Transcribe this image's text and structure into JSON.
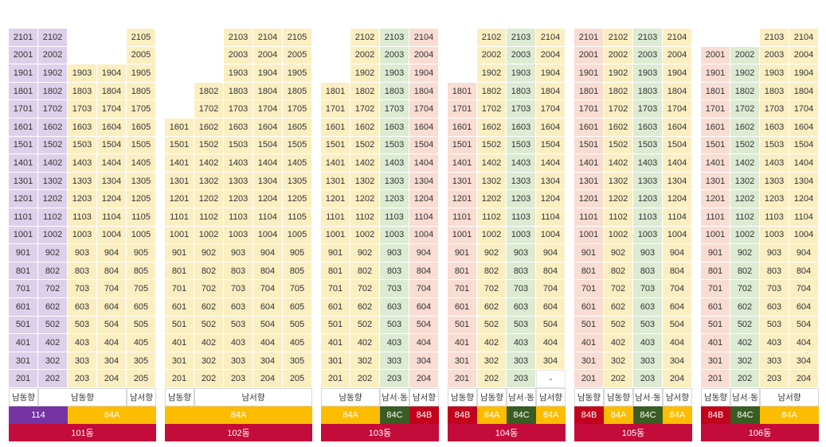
{
  "colors": {
    "purple_unit": "#ddd0ea",
    "yellow_unit": "#fbefc2",
    "green_unit": "#dcebd2",
    "pink_unit": "#f9dcd2",
    "type_114": "#7533a3",
    "type_84A": "#fcbd00",
    "type_84B": "#c2021d",
    "type_84C": "#395c22",
    "building_label": "#c30c3a"
  },
  "buildings": [
    {
      "name": "101동",
      "columns": [
        {
          "color": "purple",
          "top": 21,
          "suffix": "01",
          "bottom": 2
        },
        {
          "color": "purple",
          "top": 21,
          "suffix": "02",
          "bottom": 2
        },
        {
          "color": "yellow",
          "top": 19,
          "suffix": "03",
          "bottom": 2
        },
        {
          "color": "yellow",
          "top": 19,
          "suffix": "04",
          "bottom": 2
        },
        {
          "color": "yellow",
          "top": 21,
          "suffix": "05",
          "bottom": 2
        }
      ],
      "orientations": [
        {
          "label": "남동향",
          "span": 1
        },
        {
          "label": "남동향",
          "span": 3
        },
        {
          "label": "남서향",
          "span": 1
        }
      ],
      "types": [
        {
          "label": "114",
          "span": 2,
          "kind": "114"
        },
        {
          "label": "84A",
          "span": 3,
          "kind": "84A"
        }
      ]
    },
    {
      "name": "102동",
      "columns": [
        {
          "color": "yellow",
          "top": 16,
          "suffix": "01",
          "bottom": 2
        },
        {
          "color": "yellow",
          "top": 18,
          "suffix": "02",
          "bottom": 2
        },
        {
          "color": "yellow",
          "top": 21,
          "suffix": "03",
          "bottom": 2
        },
        {
          "color": "yellow",
          "top": 21,
          "suffix": "04",
          "bottom": 2
        },
        {
          "color": "yellow",
          "top": 21,
          "suffix": "05",
          "bottom": 2
        }
      ],
      "orientations": [
        {
          "label": "남동향",
          "span": 1
        },
        {
          "label": "남서향",
          "span": 4
        }
      ],
      "types": [
        {
          "label": "84A",
          "span": 5,
          "kind": "84A"
        }
      ]
    },
    {
      "name": "103동",
      "columns": [
        {
          "color": "yellow",
          "top": 18,
          "suffix": "01",
          "bottom": 2
        },
        {
          "color": "yellow",
          "top": 21,
          "suffix": "02",
          "bottom": 2
        },
        {
          "color": "green",
          "top": 21,
          "suffix": "03",
          "bottom": 2
        },
        {
          "color": "pink",
          "top": 21,
          "suffix": "04",
          "bottom": 2
        }
      ],
      "orientations": [
        {
          "label": "남동향",
          "span": 2
        },
        {
          "label": "남서·동",
          "span": 1
        },
        {
          "label": "남서향",
          "span": 1
        }
      ],
      "types": [
        {
          "label": "84A",
          "span": 2,
          "kind": "84A"
        },
        {
          "label": "84C",
          "span": 1,
          "kind": "84C"
        },
        {
          "label": "84B",
          "span": 1,
          "kind": "84B"
        }
      ]
    },
    {
      "name": "104동",
      "columns": [
        {
          "color": "pink",
          "top": 18,
          "suffix": "01",
          "bottom": 2
        },
        {
          "color": "yellow",
          "top": 21,
          "suffix": "02",
          "bottom": 2
        },
        {
          "color": "green",
          "top": 21,
          "suffix": "03",
          "bottom": 2
        },
        {
          "color": "yellow",
          "top": 21,
          "suffix": "04",
          "bottom": 3
        }
      ],
      "orientations": [
        {
          "label": "남동향",
          "span": 1
        },
        {
          "label": "남동향",
          "span": 1
        },
        {
          "label": "남서·동",
          "span": 1
        },
        {
          "label": "남서향",
          "span": 1
        }
      ],
      "types": [
        {
          "label": "84B",
          "span": 1,
          "kind": "84B"
        },
        {
          "label": "84A",
          "span": 1,
          "kind": "84A"
        },
        {
          "label": "84C",
          "span": 1,
          "kind": "84C"
        },
        {
          "label": "84A",
          "span": 1,
          "kind": "84A"
        }
      ],
      "dash_text": "-"
    },
    {
      "name": "105동",
      "columns": [
        {
          "color": "pink",
          "top": 21,
          "suffix": "01",
          "bottom": 2
        },
        {
          "color": "yellow",
          "top": 21,
          "suffix": "02",
          "bottom": 2
        },
        {
          "color": "green",
          "top": 21,
          "suffix": "03",
          "bottom": 2
        },
        {
          "color": "yellow",
          "top": 21,
          "suffix": "04",
          "bottom": 2
        }
      ],
      "orientations": [
        {
          "label": "남동향",
          "span": 1
        },
        {
          "label": "남동향",
          "span": 1
        },
        {
          "label": "남서·동",
          "span": 1
        },
        {
          "label": "남서향",
          "span": 1
        }
      ],
      "types": [
        {
          "label": "84B",
          "span": 1,
          "kind": "84B"
        },
        {
          "label": "84A",
          "span": 1,
          "kind": "84A"
        },
        {
          "label": "84C",
          "span": 1,
          "kind": "84C"
        },
        {
          "label": "84A",
          "span": 1,
          "kind": "84A"
        }
      ]
    },
    {
      "name": "106동",
      "columns": [
        {
          "color": "pink",
          "top": 20,
          "suffix": "01",
          "bottom": 2
        },
        {
          "color": "green",
          "top": 20,
          "suffix": "02",
          "bottom": 2
        },
        {
          "color": "yellow",
          "top": 21,
          "suffix": "03",
          "bottom": 2
        },
        {
          "color": "yellow",
          "top": 21,
          "suffix": "04",
          "bottom": 2
        }
      ],
      "orientations": [
        {
          "label": "남동향",
          "span": 1
        },
        {
          "label": "남서·동",
          "span": 1
        },
        {
          "label": "남서향",
          "span": 2
        }
      ],
      "types": [
        {
          "label": "84B",
          "span": 1,
          "kind": "84B"
        },
        {
          "label": "84C",
          "span": 1,
          "kind": "84C"
        },
        {
          "label": "84A",
          "span": 2,
          "kind": "84A"
        }
      ]
    }
  ]
}
